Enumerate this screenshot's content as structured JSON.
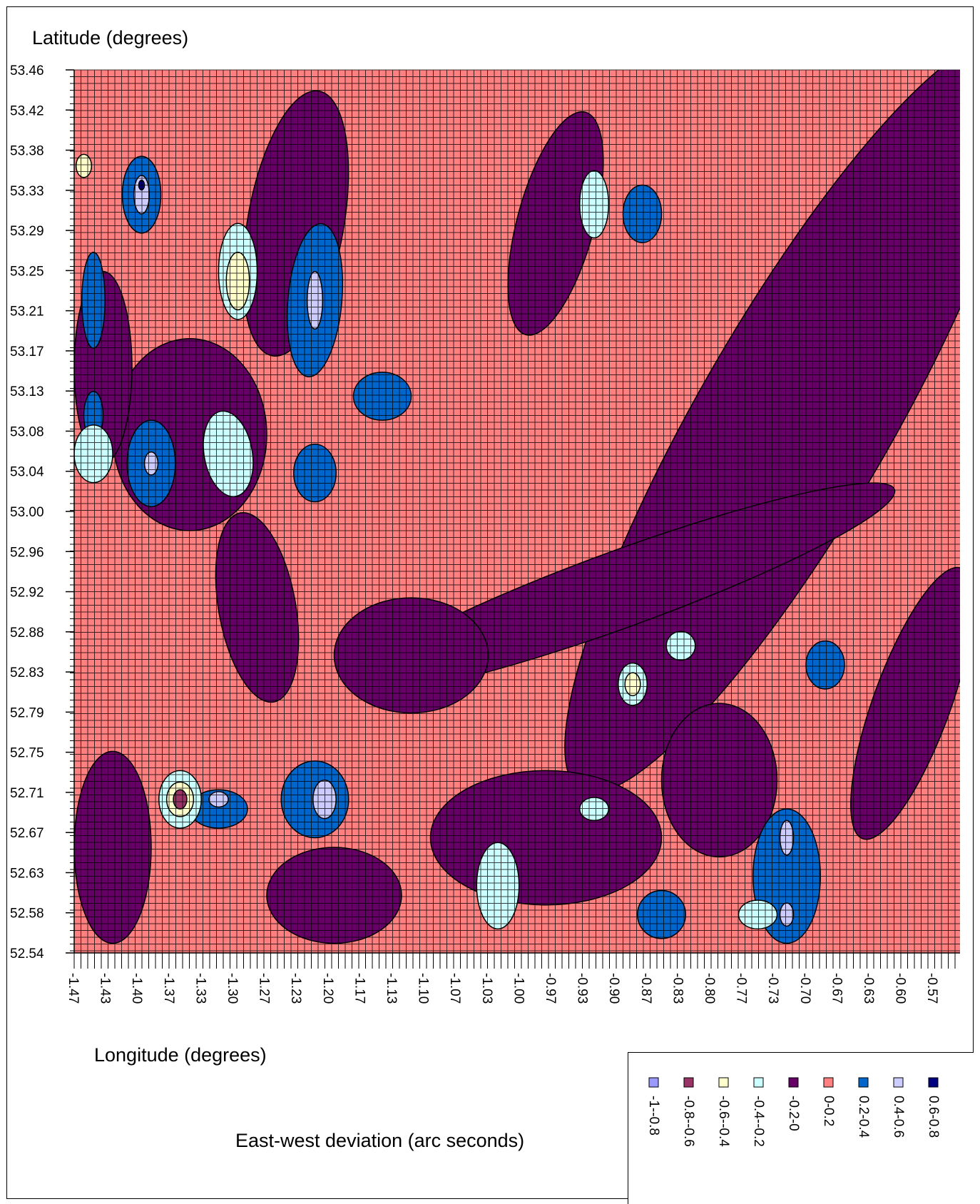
{
  "chart_data": {
    "type": "heatmap",
    "title": "",
    "xlabel": "Longitude (degrees)",
    "ylabel": "Latitude (degrees)",
    "x_ticks": [
      "-1.47",
      "-1.43",
      "-1.40",
      "-1.37",
      "-1.33",
      "-1.30",
      "-1.27",
      "-1.23",
      "-1.20",
      "-1.17",
      "-1.13",
      "-1.10",
      "-1.07",
      "-1.03",
      "-1.00",
      "-0.97",
      "-0.93",
      "-0.90",
      "-0.87",
      "-0.83",
      "-0.80",
      "-0.77",
      "-0.73",
      "-0.70",
      "-0.67",
      "-0.63",
      "-0.60",
      "-0.57"
    ],
    "y_ticks": [
      "53.46",
      "53.42",
      "53.38",
      "53.33",
      "53.29",
      "53.25",
      "53.21",
      "53.17",
      "53.13",
      "53.08",
      "53.04",
      "53.00",
      "52.96",
      "52.92",
      "52.88",
      "52.83",
      "52.79",
      "52.75",
      "52.71",
      "52.67",
      "52.63",
      "52.58",
      "52.54"
    ],
    "xlim": [
      -1.47,
      -0.55
    ],
    "ylim": [
      52.54,
      53.46
    ],
    "grid": true,
    "legend": {
      "title": "East-west deviation (arc seconds)",
      "placement": "bottom-right",
      "entries": [
        {
          "label": "-1--0.8",
          "color": "#9999ff"
        },
        {
          "label": "-0.8--0.6",
          "color": "#993366"
        },
        {
          "label": "-0.6--0.4",
          "color": "#ffffcc"
        },
        {
          "label": "-0.4--0.2",
          "color": "#ccffff"
        },
        {
          "label": "-0.2-0",
          "color": "#660066"
        },
        {
          "label": "0-0.2",
          "color": "#ff8080"
        },
        {
          "label": "0.2-0.4",
          "color": "#0066cc"
        },
        {
          "label": "0.4-0.6",
          "color": "#ccccff"
        },
        {
          "label": "0.6-0.8",
          "color": "#000080"
        }
      ]
    },
    "regions": [
      {
        "band": "-0.2-0",
        "cx": -1.24,
        "cy": 53.3,
        "rx": 0.05,
        "ry": 0.14,
        "rot": 10
      },
      {
        "band": "-0.2-0",
        "cx": -0.97,
        "cy": 53.3,
        "rx": 0.04,
        "ry": 0.12,
        "rot": 15
      },
      {
        "band": "-0.2-0",
        "cx": -0.72,
        "cy": 53.1,
        "rx": 0.1,
        "ry": 0.45,
        "rot": 30
      },
      {
        "band": "-0.2-0",
        "cx": -0.9,
        "cy": 52.92,
        "rx": 0.3,
        "ry": 0.04,
        "rot": -20
      },
      {
        "band": "-0.2-0",
        "cx": -1.35,
        "cy": 53.08,
        "rx": 0.08,
        "ry": 0.1,
        "rot": 0
      },
      {
        "band": "-0.2-0",
        "cx": -1.43,
        "cy": 52.65,
        "rx": 0.04,
        "ry": 0.1,
        "rot": 0
      },
      {
        "band": "-0.2-0",
        "cx": -1.12,
        "cy": 52.85,
        "rx": 0.08,
        "ry": 0.06,
        "rot": 0
      },
      {
        "band": "-0.2-0",
        "cx": -0.98,
        "cy": 52.66,
        "rx": 0.12,
        "ry": 0.07,
        "rot": 0
      },
      {
        "band": "-0.2-0",
        "cx": -1.2,
        "cy": 52.6,
        "rx": 0.07,
        "ry": 0.05,
        "rot": 0
      },
      {
        "band": "-0.2-0",
        "cx": -0.6,
        "cy": 52.8,
        "rx": 0.04,
        "ry": 0.15,
        "rot": 20
      },
      {
        "band": "-0.2-0",
        "cx": -1.28,
        "cy": 52.9,
        "rx": 0.04,
        "ry": 0.1,
        "rot": -10
      },
      {
        "band": "-0.2-0",
        "cx": -1.44,
        "cy": 53.15,
        "rx": 0.03,
        "ry": 0.1,
        "rot": 0
      },
      {
        "band": "-0.2-0",
        "cx": -0.8,
        "cy": 52.72,
        "rx": 0.06,
        "ry": 0.08,
        "rot": 0
      },
      {
        "band": "0.2-0.4",
        "cx": -1.22,
        "cy": 53.22,
        "rx": 0.028,
        "ry": 0.08,
        "rot": 5
      },
      {
        "band": "0.2-0.4",
        "cx": -1.39,
        "cy": 53.05,
        "rx": 0.025,
        "ry": 0.045,
        "rot": 0
      },
      {
        "band": "0.2-0.4",
        "cx": -1.4,
        "cy": 53.33,
        "rx": 0.02,
        "ry": 0.04,
        "rot": 0
      },
      {
        "band": "0.2-0.4",
        "cx": -1.22,
        "cy": 53.04,
        "rx": 0.022,
        "ry": 0.03,
        "rot": 0
      },
      {
        "band": "0.2-0.4",
        "cx": -1.15,
        "cy": 53.12,
        "rx": 0.03,
        "ry": 0.025,
        "rot": 0
      },
      {
        "band": "0.2-0.4",
        "cx": -0.88,
        "cy": 53.31,
        "rx": 0.02,
        "ry": 0.03,
        "rot": 0
      },
      {
        "band": "0.2-0.4",
        "cx": -1.22,
        "cy": 52.7,
        "rx": 0.035,
        "ry": 0.04,
        "rot": 0
      },
      {
        "band": "0.2-0.4",
        "cx": -1.32,
        "cy": 52.69,
        "rx": 0.03,
        "ry": 0.02,
        "rot": 0
      },
      {
        "band": "0.2-0.4",
        "cx": -0.73,
        "cy": 52.62,
        "rx": 0.035,
        "ry": 0.07,
        "rot": 0
      },
      {
        "band": "0.2-0.4",
        "cx": -0.86,
        "cy": 52.58,
        "rx": 0.025,
        "ry": 0.025,
        "rot": 0
      },
      {
        "band": "0.2-0.4",
        "cx": -0.69,
        "cy": 52.84,
        "rx": 0.02,
        "ry": 0.025,
        "rot": 0
      },
      {
        "band": "0.2-0.4",
        "cx": -1.45,
        "cy": 53.22,
        "rx": 0.012,
        "ry": 0.05,
        "rot": 0
      },
      {
        "band": "0.2-0.4",
        "cx": -1.45,
        "cy": 53.1,
        "rx": 0.01,
        "ry": 0.025,
        "rot": 0
      },
      {
        "band": "-0.4--0.2",
        "cx": -1.3,
        "cy": 53.25,
        "rx": 0.02,
        "ry": 0.05,
        "rot": 0
      },
      {
        "band": "-0.4--0.2",
        "cx": -1.31,
        "cy": 53.06,
        "rx": 0.025,
        "ry": 0.045,
        "rot": -10
      },
      {
        "band": "-0.4--0.2",
        "cx": -1.45,
        "cy": 53.06,
        "rx": 0.02,
        "ry": 0.03,
        "rot": 0
      },
      {
        "band": "-0.4--0.2",
        "cx": -0.93,
        "cy": 53.32,
        "rx": 0.015,
        "ry": 0.035,
        "rot": 0
      },
      {
        "band": "-0.4--0.2",
        "cx": -1.03,
        "cy": 52.61,
        "rx": 0.022,
        "ry": 0.045,
        "rot": 0
      },
      {
        "band": "-0.4--0.2",
        "cx": -0.84,
        "cy": 52.86,
        "rx": 0.015,
        "ry": 0.015,
        "rot": 0
      },
      {
        "band": "-0.4--0.2",
        "cx": -0.93,
        "cy": 52.69,
        "rx": 0.015,
        "ry": 0.012,
        "rot": 0
      },
      {
        "band": "-0.4--0.2",
        "cx": -0.76,
        "cy": 52.58,
        "rx": 0.02,
        "ry": 0.015,
        "rot": 0
      },
      {
        "band": "-0.4--0.2",
        "cx": -1.36,
        "cy": 52.7,
        "rx": 0.022,
        "ry": 0.03,
        "rot": 0
      },
      {
        "band": "-0.4--0.2",
        "cx": -0.89,
        "cy": 52.82,
        "rx": 0.015,
        "ry": 0.022,
        "rot": 0
      },
      {
        "band": "-0.6--0.4",
        "cx": -1.3,
        "cy": 53.24,
        "rx": 0.012,
        "ry": 0.03,
        "rot": 0
      },
      {
        "band": "-0.6--0.4",
        "cx": -1.36,
        "cy": 52.7,
        "rx": 0.014,
        "ry": 0.018,
        "rot": 0
      },
      {
        "band": "-0.6--0.4",
        "cx": -1.46,
        "cy": 53.36,
        "rx": 0.008,
        "ry": 0.012,
        "rot": 0
      },
      {
        "band": "-0.6--0.4",
        "cx": -0.89,
        "cy": 52.82,
        "rx": 0.008,
        "ry": 0.012,
        "rot": 0
      },
      {
        "band": "-0.8--0.6",
        "cx": -1.36,
        "cy": 52.7,
        "rx": 0.007,
        "ry": 0.01,
        "rot": 0
      },
      {
        "band": "0.4-0.6",
        "cx": -1.4,
        "cy": 53.33,
        "rx": 0.008,
        "ry": 0.02,
        "rot": 0
      },
      {
        "band": "0.4-0.6",
        "cx": -1.22,
        "cy": 53.22,
        "rx": 0.008,
        "ry": 0.03,
        "rot": 0
      },
      {
        "band": "0.4-0.6",
        "cx": -1.39,
        "cy": 53.05,
        "rx": 0.007,
        "ry": 0.012,
        "rot": 0
      },
      {
        "band": "0.4-0.6",
        "cx": -1.21,
        "cy": 52.7,
        "rx": 0.012,
        "ry": 0.02,
        "rot": 0
      },
      {
        "band": "0.4-0.6",
        "cx": -0.73,
        "cy": 52.66,
        "rx": 0.007,
        "ry": 0.018,
        "rot": 0
      },
      {
        "band": "0.4-0.6",
        "cx": -0.73,
        "cy": 52.58,
        "rx": 0.007,
        "ry": 0.012,
        "rot": 0
      },
      {
        "band": "0.4-0.6",
        "cx": -1.32,
        "cy": 52.7,
        "rx": 0.01,
        "ry": 0.008,
        "rot": 0
      },
      {
        "band": "0.6-0.8",
        "cx": -1.4,
        "cy": 53.34,
        "rx": 0.003,
        "ry": 0.005,
        "rot": 0
      }
    ]
  }
}
